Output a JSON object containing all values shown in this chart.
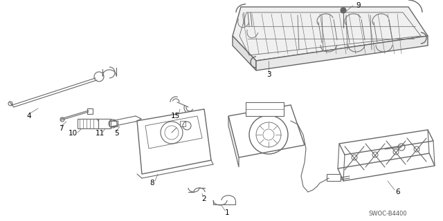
{
  "background_color": "#ffffff",
  "line_color": "#666666",
  "text_color": "#000000",
  "fig_width": 6.4,
  "fig_height": 3.2,
  "dpi": 100,
  "watermark": "SWOC-B4400",
  "label_fontsize": 7.5,
  "part4_label": "4",
  "part7_label": "7",
  "part10_label": "10",
  "part11_label": "11",
  "part5_label": "5",
  "part15_label": "15",
  "part8_label": "8",
  "part2_label": "2",
  "part1_label": "1",
  "part3_label": "3",
  "part9_label": "9",
  "part6_label": "6"
}
